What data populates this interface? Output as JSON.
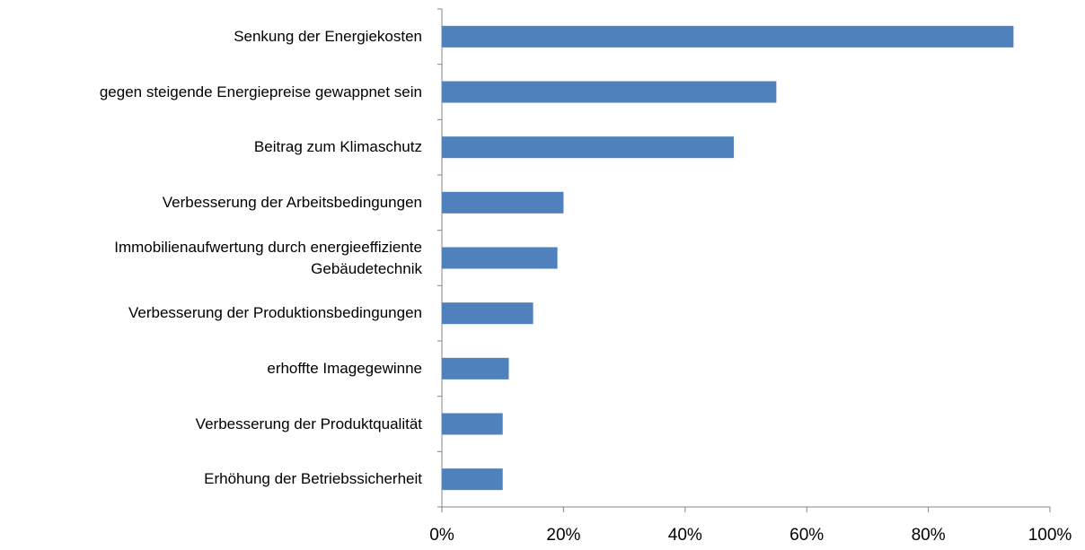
{
  "chart_data": {
    "type": "bar",
    "orientation": "horizontal",
    "categories": [
      "Senkung der Energiekosten",
      "gegen steigende Energiepreise gewappnet sein",
      "Beitrag zum Klimaschutz",
      "Verbesserung der Arbeitsbedingungen",
      "Immobilienaufwertung durch energieeffiziente Gebäudetechnik",
      "Verbesserung der Produktionsbedingungen",
      "erhoffte Imagegewinne",
      "Verbesserung der Produktqualität",
      "Erhöhung der Betriebssicherheit"
    ],
    "values": [
      94,
      55,
      48,
      20,
      19,
      15,
      11,
      10,
      10
    ],
    "color": "#4f81bd",
    "xlim": [
      0,
      100
    ],
    "xticks": [
      {
        "value": 0,
        "label": "0%"
      },
      {
        "value": 20,
        "label": "20%"
      },
      {
        "value": 40,
        "label": "40%"
      },
      {
        "value": 60,
        "label": "60%"
      },
      {
        "value": 80,
        "label": "80%"
      },
      {
        "value": 100,
        "label": "100%"
      }
    ]
  }
}
